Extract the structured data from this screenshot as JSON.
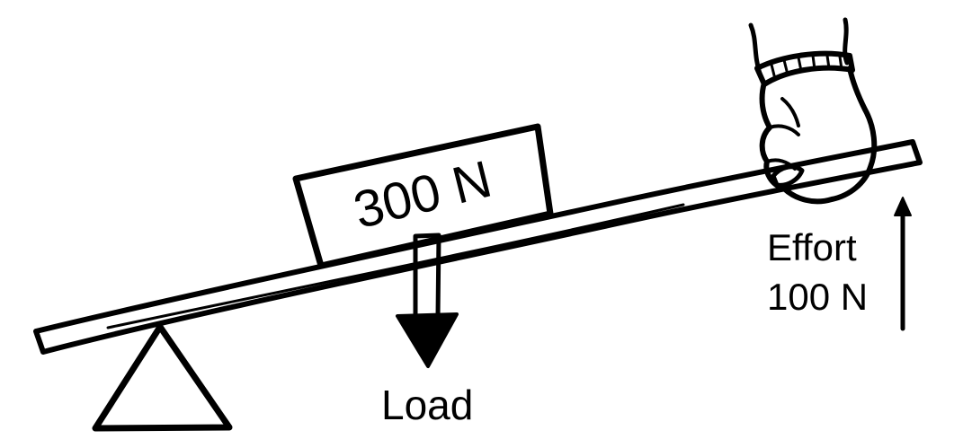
{
  "load": {
    "weight_label": "300 N",
    "label": "Load"
  },
  "effort": {
    "label": "Effort",
    "value": "100 N"
  },
  "parts": {
    "fulcrum_icon": "triangle-icon",
    "lever_icon": "lever-bar-icon",
    "box_icon": "weight-box-icon",
    "load_arrow_icon": "arrow-down-icon",
    "effort_arrow_icon": "arrow-up-icon",
    "hand_icon": "hand-icon"
  },
  "colors": {
    "ink": "#000000",
    "paper": "#ffffff"
  }
}
